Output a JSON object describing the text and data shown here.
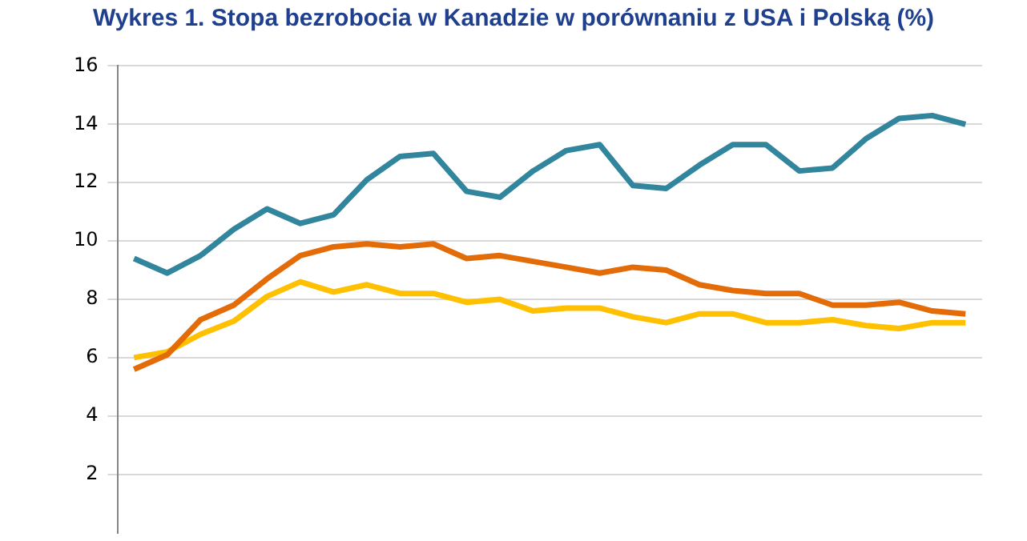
{
  "chart_data": {
    "type": "line",
    "title": "Wykres 1. Stopa bezrobocia w Kanadzie w porównaniu z USA i Polską (%)",
    "categories": [
      null,
      null,
      null,
      null,
      null,
      null,
      null,
      null,
      null,
      null,
      null,
      null,
      null,
      null,
      null,
      null,
      null,
      null,
      null,
      null,
      null,
      null,
      null,
      null,
      null,
      null
    ],
    "series": [
      {
        "color": "#31859c",
        "values": [
          9.4,
          8.9,
          9.5,
          10.4,
          11.1,
          10.6,
          10.9,
          12.1,
          12.9,
          13.0,
          11.7,
          11.5,
          12.4,
          13.1,
          13.3,
          11.9,
          11.8,
          12.6,
          13.3,
          13.3,
          12.4,
          12.5,
          13.5,
          14.2,
          14.3,
          14.0
        ]
      },
      {
        "color": "#e36c09",
        "values": [
          5.6,
          6.1,
          7.3,
          7.8,
          8.7,
          9.5,
          9.8,
          9.9,
          9.8,
          9.9,
          9.4,
          9.5,
          9.3,
          9.1,
          8.9,
          9.1,
          9.0,
          8.5,
          8.3,
          8.2,
          8.2,
          7.8,
          7.8,
          7.9,
          7.6,
          7.5
        ]
      },
      {
        "color": "#ffc000",
        "values": [
          6.0,
          6.2,
          6.8,
          7.25,
          8.1,
          8.6,
          8.25,
          8.5,
          8.2,
          8.2,
          7.9,
          8.0,
          7.6,
          7.7,
          7.7,
          7.4,
          7.2,
          7.5,
          7.5,
          7.2,
          7.2,
          7.3,
          7.1,
          7.0,
          7.2,
          7.2
        ]
      }
    ],
    "ylim": [
      0,
      16
    ],
    "yticks": [
      2,
      4,
      6,
      8,
      10,
      12,
      14,
      16
    ],
    "grid": "y",
    "tick_labels": "y",
    "legend": false,
    "marker": "none",
    "line_style": "solid"
  }
}
